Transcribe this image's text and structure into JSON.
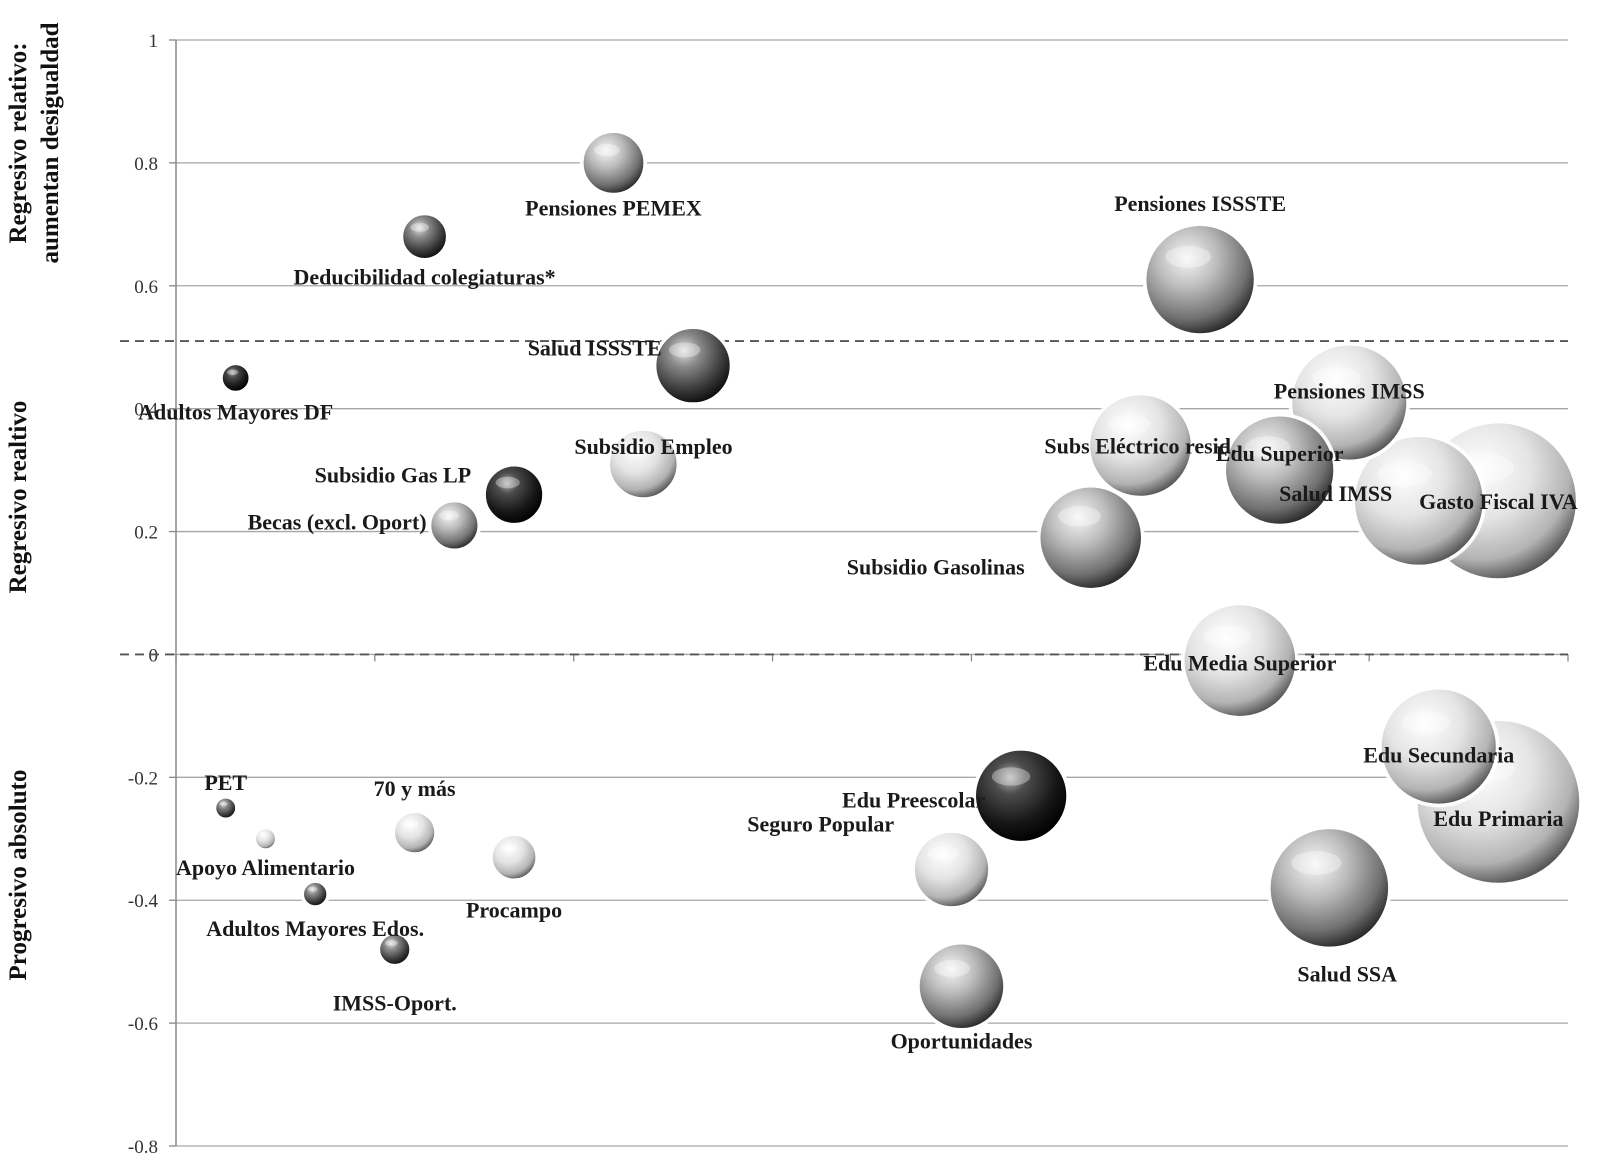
{
  "chart_data": {
    "type": "scatter",
    "title": "",
    "xlabel": "",
    "ylabel": "",
    "ylim": [
      -0.8,
      1
    ],
    "yticks": [
      1,
      0.8,
      0.6,
      0.4,
      0.2,
      0,
      -0.2,
      -0.4,
      -0.6,
      -0.8
    ],
    "y_tick_labels": [
      "1",
      "0.8",
      "0.6",
      "0.4",
      "0.2",
      "0",
      "-0.2",
      "-0.4",
      "-0.6",
      "-0.8"
    ],
    "grid": true,
    "dashed_thresholds": [
      0.51,
      0.0
    ],
    "zones": [
      {
        "lines": [
          "Regresivo relativo:",
          "aumentan desigualdad"
        ]
      },
      {
        "lines": [
          "Regresivo realtivo"
        ]
      },
      {
        "lines": [
          "Progresivo absoluto"
        ]
      }
    ],
    "bubbles": [
      {
        "name": "Pensiones PEMEX",
        "x": 4.4,
        "y": 0.8,
        "size": 0.9,
        "shade": "mid"
      },
      {
        "name": "Deducibilidad colegiaturas*",
        "x": 2.5,
        "y": 0.68,
        "size": 0.65,
        "shade": "dark"
      },
      {
        "name": "Pensiones ISSSTE",
        "x": 10.3,
        "y": 0.61,
        "size": 1.6,
        "shade": "mid"
      },
      {
        "name": "Adultos Mayores DF",
        "x": 0.6,
        "y": 0.45,
        "size": 0.4,
        "shade": "black"
      },
      {
        "name": "Salud ISSSTE",
        "x": 5.2,
        "y": 0.47,
        "size": 1.1,
        "shade": "dark"
      },
      {
        "name": "Pensiones IMSS",
        "x": 11.8,
        "y": 0.41,
        "size": 1.7,
        "shade": "light"
      },
      {
        "name": "Subsidio Empleo",
        "x": 4.7,
        "y": 0.31,
        "size": 1.0,
        "shade": "light"
      },
      {
        "name": "Subsidio Gas LP",
        "x": 3.4,
        "y": 0.26,
        "size": 0.85,
        "shade": "black"
      },
      {
        "name": "Becas (excl. Oport)",
        "x": 2.8,
        "y": 0.21,
        "size": 0.7,
        "shade": "mid"
      },
      {
        "name": "Subs Eléctrico resid.",
        "x": 9.7,
        "y": 0.34,
        "size": 1.5,
        "shade": "light"
      },
      {
        "name": "Edu Superior",
        "x": 11.1,
        "y": 0.3,
        "size": 1.6,
        "shade": "mid"
      },
      {
        "name": "Subsidio Gasolinas",
        "x": 9.2,
        "y": 0.19,
        "size": 1.5,
        "shade": "mid"
      },
      {
        "name": "Salud IMSS",
        "x": 12.5,
        "y": 0.25,
        "size": 1.9,
        "shade": "light"
      },
      {
        "name": "Gasto Fiscal IVA",
        "x": 13.3,
        "y": 0.25,
        "size": 2.3,
        "shade": "light"
      },
      {
        "name": "Edu Media Superior",
        "x": 10.7,
        "y": -0.01,
        "size": 1.65,
        "shade": "light"
      },
      {
        "name": "Edu Secundaria",
        "x": 12.7,
        "y": -0.15,
        "size": 1.7,
        "shade": "light"
      },
      {
        "name": "Edu Primaria",
        "x": 13.3,
        "y": -0.24,
        "size": 2.4,
        "shade": "light"
      },
      {
        "name": "Salud SSA",
        "x": 11.6,
        "y": -0.38,
        "size": 1.75,
        "shade": "mid"
      },
      {
        "name": "Edu Preescolar",
        "x": 8.5,
        "y": -0.23,
        "size": 1.35,
        "shade": "black"
      },
      {
        "name": "Seguro Popular",
        "x": 7.8,
        "y": -0.35,
        "size": 1.1,
        "shade": "light"
      },
      {
        "name": "Oportunidades",
        "x": 7.9,
        "y": -0.54,
        "size": 1.25,
        "shade": "mid"
      },
      {
        "name": "PET",
        "x": 0.5,
        "y": -0.25,
        "size": 0.3,
        "shade": "dark"
      },
      {
        "name": "Apoyo Alimentario",
        "x": 0.9,
        "y": -0.3,
        "size": 0.3,
        "shade": "light"
      },
      {
        "name": "Adultos Mayores Edos.",
        "x": 1.4,
        "y": -0.39,
        "size": 0.35,
        "shade": "dark"
      },
      {
        "name": "70 y más",
        "x": 2.4,
        "y": -0.29,
        "size": 0.6,
        "shade": "light"
      },
      {
        "name": "Procampo",
        "x": 3.4,
        "y": -0.33,
        "size": 0.65,
        "shade": "light"
      },
      {
        "name": "IMSS-Oport.",
        "x": 2.2,
        "y": -0.48,
        "size": 0.45,
        "shade": "dark"
      }
    ]
  }
}
